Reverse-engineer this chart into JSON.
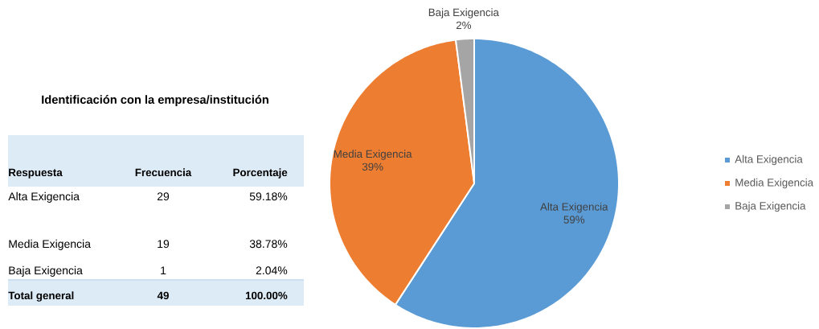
{
  "chart_data": [
    {
      "type": "other",
      "title": "Identificación con la empresa/institución",
      "xlabel": "Respuesta",
      "categories": [
        "Alta Exigencia",
        "Media Exigencia",
        "Baja Exigencia"
      ],
      "series": [
        {
          "name": "Frecuencia",
          "values": [
            29,
            19,
            1
          ]
        },
        {
          "name": "Porcentaje",
          "values": [
            59.18,
            38.78,
            2.04
          ],
          "value_labels": [
            "59.18%",
            "38.78%",
            "2.04%"
          ]
        }
      ],
      "data_labels": true,
      "totals": [
        "49",
        "100.00%"
      ],
      "annotations": [
        "Total general"
      ]
    },
    {
      "type": "pie",
      "categories": [
        "Alta Exigencia",
        "Media Exigencia",
        "Baja Exigencia"
      ],
      "values": [
        59.18,
        38.78,
        2.04
      ],
      "value_labels": [
        "59%",
        "39%",
        "2%"
      ],
      "colors": [
        "#5b9bd5",
        "#ed7d31",
        "#a5a5a5"
      ],
      "legend": "right"
    }
  ]
}
